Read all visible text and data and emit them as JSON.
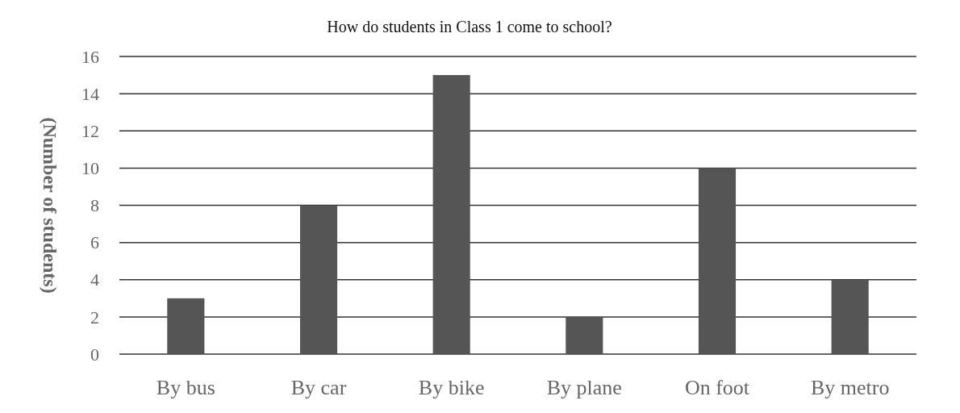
{
  "chart_data": {
    "type": "bar",
    "title": "How do students in Class 1 come to school?",
    "ylabel": "(Number of students)",
    "categories": [
      "By bus",
      "By car",
      "By bike",
      "By plane",
      "On foot",
      "By metro"
    ],
    "values": [
      3,
      8,
      15,
      2,
      10,
      4
    ],
    "color": "#555555",
    "ylim": [
      0,
      16
    ],
    "yticks": [
      0,
      2,
      4,
      6,
      8,
      10,
      12,
      14,
      16
    ],
    "grid": "y"
  }
}
